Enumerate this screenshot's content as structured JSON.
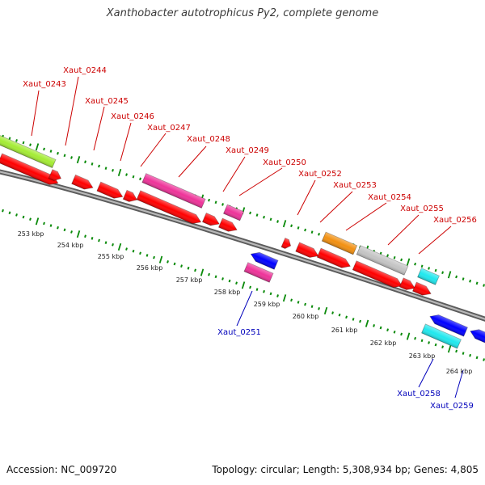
{
  "title": "Xanthobacter autotrophicus Py2, complete genome",
  "footer": {
    "accession": "Accession: NC_009720",
    "summary": "Topology: circular; Length: 5,308,934 bp; Genes: 4,805"
  },
  "colors": {
    "forward_gene": "#ff0000",
    "reverse_gene": "#0000ff",
    "forward_label": "#cc0000",
    "reverse_label": "#0000bb",
    "backbone": "#808080",
    "ticks": "#0a8a0a",
    "lime": "#a4ec34",
    "magenta": "#ee3399",
    "orange": "#f29011",
    "silver": "#c4c4c4",
    "cyan": "#20e8ee"
  },
  "ticks": [
    {
      "label": "253 kbp"
    },
    {
      "label": "254 kbp"
    },
    {
      "label": "255 kbp"
    },
    {
      "label": "256 kbp"
    },
    {
      "label": "257 kbp"
    },
    {
      "label": "258 kbp"
    },
    {
      "label": "259 kbp"
    },
    {
      "label": "260 kbp"
    },
    {
      "label": "261 kbp"
    },
    {
      "label": "262 kbp"
    },
    {
      "label": "263 kbp"
    },
    {
      "label": "264 kbp"
    }
  ],
  "forward_genes": [
    {
      "label": "Xaut_0243"
    },
    {
      "label": "Xaut_0244"
    },
    {
      "label": "Xaut_0245"
    },
    {
      "label": "Xaut_0246"
    },
    {
      "label": "Xaut_0247"
    },
    {
      "label": "Xaut_0248"
    },
    {
      "label": "Xaut_0249"
    },
    {
      "label": "Xaut_0250"
    },
    {
      "label": "Xaut_0252"
    },
    {
      "label": "Xaut_0253"
    },
    {
      "label": "Xaut_0254"
    },
    {
      "label": "Xaut_0255"
    },
    {
      "label": "Xaut_0256"
    }
  ],
  "reverse_genes": [
    {
      "label": "Xaut_0251"
    },
    {
      "label": "Xaut_0258"
    },
    {
      "label": "Xaut_0259"
    }
  ]
}
